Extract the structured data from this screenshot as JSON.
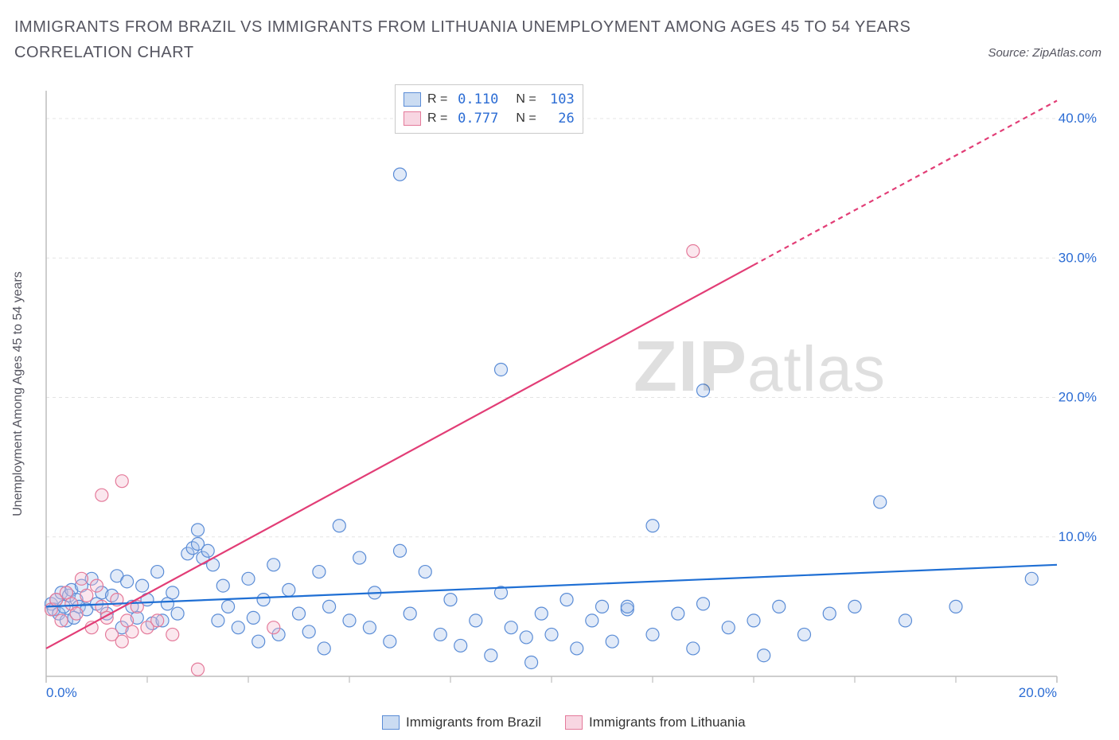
{
  "title": "IMMIGRANTS FROM BRAZIL VS IMMIGRANTS FROM LITHUANIA UNEMPLOYMENT AMONG AGES 45 TO 54 YEARS CORRELATION CHART",
  "source": "Source: ZipAtlas.com",
  "ylabel": "Unemployment Among Ages 45 to 54 years",
  "watermark": {
    "bold": "ZIP",
    "rest": "atlas"
  },
  "chart": {
    "type": "scatter",
    "xlim": [
      0,
      20
    ],
    "ylim": [
      0,
      42
    ],
    "xtick_vals": [
      0,
      20
    ],
    "xtick_labels": [
      "0.0%",
      "20.0%"
    ],
    "ytick_vals": [
      10,
      20,
      30,
      40
    ],
    "ytick_labels": [
      "10.0%",
      "20.0%",
      "30.0%",
      "40.0%"
    ],
    "grid_color": "#e4e4e4",
    "axis_color": "#bdbdbd",
    "background_color": "#ffffff",
    "tick_label_color": "#2b6cd4",
    "marker_radius": 8,
    "marker_stroke_width": 1.2,
    "marker_fill_opacity": 0.35,
    "trend_line_width": 2.2,
    "trend_dash": "6,5"
  },
  "series": [
    {
      "name": "Immigrants from Brazil",
      "color_stroke": "#5a8cd6",
      "color_fill": "#a8c4ea",
      "trend_color": "#1f6fd4",
      "R": "0.110",
      "N": "103",
      "trend": {
        "x1": 0,
        "y1": 5.0,
        "x2": 20,
        "y2": 8.0,
        "x_extrap": 20
      },
      "points": [
        [
          0.1,
          5.2
        ],
        [
          0.15,
          4.8
        ],
        [
          0.2,
          5.5
        ],
        [
          0.25,
          4.5
        ],
        [
          0.3,
          6.0
        ],
        [
          0.35,
          5.0
        ],
        [
          0.4,
          4.0
        ],
        [
          0.45,
          5.8
        ],
        [
          0.5,
          6.2
        ],
        [
          0.55,
          4.2
        ],
        [
          0.6,
          5.5
        ],
        [
          0.65,
          5.0
        ],
        [
          0.7,
          6.5
        ],
        [
          0.8,
          4.8
        ],
        [
          0.9,
          7.0
        ],
        [
          1.0,
          5.2
        ],
        [
          1.1,
          6.0
        ],
        [
          1.2,
          4.5
        ],
        [
          1.3,
          5.8
        ],
        [
          1.4,
          7.2
        ],
        [
          1.5,
          3.5
        ],
        [
          1.6,
          6.8
        ],
        [
          1.7,
          5.0
        ],
        [
          1.8,
          4.2
        ],
        [
          1.9,
          6.5
        ],
        [
          2.0,
          5.5
        ],
        [
          2.1,
          3.8
        ],
        [
          2.2,
          7.5
        ],
        [
          2.3,
          4.0
        ],
        [
          2.4,
          5.2
        ],
        [
          2.5,
          6.0
        ],
        [
          2.6,
          4.5
        ],
        [
          2.8,
          8.8
        ],
        [
          2.9,
          9.2
        ],
        [
          3.0,
          9.5
        ],
        [
          3.0,
          10.5
        ],
        [
          3.1,
          8.5
        ],
        [
          3.2,
          9.0
        ],
        [
          3.3,
          8.0
        ],
        [
          3.4,
          4.0
        ],
        [
          3.5,
          6.5
        ],
        [
          3.6,
          5.0
        ],
        [
          3.8,
          3.5
        ],
        [
          4.0,
          7.0
        ],
        [
          4.1,
          4.2
        ],
        [
          4.2,
          2.5
        ],
        [
          4.3,
          5.5
        ],
        [
          4.5,
          8.0
        ],
        [
          4.6,
          3.0
        ],
        [
          4.8,
          6.2
        ],
        [
          5.0,
          4.5
        ],
        [
          5.2,
          3.2
        ],
        [
          5.4,
          7.5
        ],
        [
          5.5,
          2.0
        ],
        [
          5.6,
          5.0
        ],
        [
          5.8,
          10.8
        ],
        [
          6.0,
          4.0
        ],
        [
          6.2,
          8.5
        ],
        [
          6.4,
          3.5
        ],
        [
          6.5,
          6.0
        ],
        [
          6.8,
          2.5
        ],
        [
          7.0,
          9.0
        ],
        [
          7.0,
          36.0
        ],
        [
          7.2,
          4.5
        ],
        [
          7.5,
          7.5
        ],
        [
          7.8,
          3.0
        ],
        [
          8.0,
          5.5
        ],
        [
          8.2,
          2.2
        ],
        [
          8.5,
          4.0
        ],
        [
          8.8,
          1.5
        ],
        [
          9.0,
          22.0
        ],
        [
          9.0,
          6.0
        ],
        [
          9.2,
          3.5
        ],
        [
          9.5,
          2.8
        ],
        [
          9.6,
          1.0
        ],
        [
          9.8,
          4.5
        ],
        [
          10.0,
          3.0
        ],
        [
          10.3,
          5.5
        ],
        [
          10.5,
          2.0
        ],
        [
          10.8,
          4.0
        ],
        [
          11.0,
          5.0
        ],
        [
          11.2,
          2.5
        ],
        [
          11.5,
          4.8
        ],
        [
          11.5,
          5.0
        ],
        [
          12.0,
          3.0
        ],
        [
          12.0,
          10.8
        ],
        [
          12.5,
          4.5
        ],
        [
          12.8,
          2.0
        ],
        [
          13.0,
          20.5
        ],
        [
          13.0,
          5.2
        ],
        [
          13.5,
          3.5
        ],
        [
          14.0,
          4.0
        ],
        [
          14.2,
          1.5
        ],
        [
          14.5,
          5.0
        ],
        [
          15.0,
          3.0
        ],
        [
          15.5,
          4.5
        ],
        [
          16.0,
          5.0
        ],
        [
          16.5,
          12.5
        ],
        [
          17.0,
          4.0
        ],
        [
          18.0,
          5.0
        ],
        [
          19.5,
          7.0
        ]
      ]
    },
    {
      "name": "Immigrants from Lithuania",
      "color_stroke": "#e47a9a",
      "color_fill": "#f4bbcf",
      "trend_color": "#e23d76",
      "R": "0.777",
      "N": "26",
      "trend": {
        "x1": 0,
        "y1": 2.0,
        "x2": 14.0,
        "y2": 29.5,
        "x_extrap": 20
      },
      "points": [
        [
          0.1,
          4.8
        ],
        [
          0.2,
          5.5
        ],
        [
          0.3,
          4.0
        ],
        [
          0.4,
          6.0
        ],
        [
          0.5,
          5.2
        ],
        [
          0.6,
          4.5
        ],
        [
          0.7,
          7.0
        ],
        [
          0.8,
          5.8
        ],
        [
          0.9,
          3.5
        ],
        [
          1.0,
          6.5
        ],
        [
          1.1,
          5.0
        ],
        [
          1.2,
          4.2
        ],
        [
          1.3,
          3.0
        ],
        [
          1.4,
          5.5
        ],
        [
          1.5,
          2.5
        ],
        [
          1.6,
          4.0
        ],
        [
          1.7,
          3.2
        ],
        [
          1.8,
          5.0
        ],
        [
          1.1,
          13.0
        ],
        [
          1.5,
          14.0
        ],
        [
          2.0,
          3.5
        ],
        [
          2.2,
          4.0
        ],
        [
          2.5,
          3.0
        ],
        [
          3.0,
          0.5
        ],
        [
          4.5,
          3.5
        ],
        [
          12.8,
          30.5
        ]
      ]
    }
  ],
  "legend_panel": {
    "R_label": "R =",
    "N_label": "N ="
  },
  "bottom_legend": [
    {
      "label": "Immigrants from Brazil",
      "stroke": "#5a8cd6",
      "fill": "#a8c4ea"
    },
    {
      "label": "Immigrants from Lithuania",
      "stroke": "#e47a9a",
      "fill": "#f4bbcf"
    }
  ]
}
